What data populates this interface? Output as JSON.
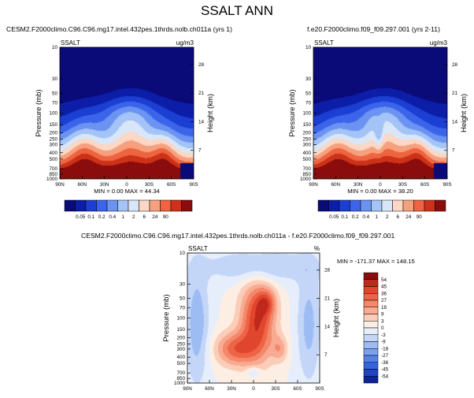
{
  "title": "SSALT ANN",
  "chart_data": [
    {
      "type": "heatmap",
      "title": "CESM2.F2000climo.C96.C96.mg17.intel.432pes.1thrds.nolb.ch011a (yrs 1)",
      "variable": "SSALT",
      "units": "ug/m3",
      "ylabel": "Pressure (mb)",
      "y2label": "Height (km)",
      "x_ticks": [
        "90N",
        "60N",
        "30N",
        "0",
        "30S",
        "60S",
        "90S"
      ],
      "y_ticks": [
        "10",
        "30",
        "50",
        "70",
        "100",
        "150",
        "200",
        "250",
        "300",
        "400",
        "500",
        "700",
        "850",
        "1000"
      ],
      "y2_ticks": [
        "28",
        "21",
        "14",
        "7"
      ],
      "ylim": [
        1000,
        10
      ],
      "yscale": "log",
      "stats": "MIN =  0.00  MAX = 44.34",
      "color_levels": [
        "0.05",
        "0.1",
        "0.2",
        "0.4",
        "1",
        "2",
        "6",
        "24",
        "90"
      ],
      "colors": [
        "#0a0a78",
        "#0c1ea8",
        "#1a3fd2",
        "#3c64ea",
        "#6a93f2",
        "#a4c3f6",
        "#d8e6f8",
        "#fbd7c4",
        "#f6a07e",
        "#ee6440",
        "#cc3218",
        "#8a0c0c"
      ]
    },
    {
      "type": "heatmap",
      "title": "f.e20.F2000climo.f09_f09.297.001 (yrs 2-11)",
      "variable": "SSALT",
      "units": "ug/m3",
      "ylabel": "Pressure (mb)",
      "y2label": "Height (km)",
      "x_ticks": [
        "90N",
        "60N",
        "30N",
        "0",
        "30S",
        "60S",
        "90S"
      ],
      "y_ticks": [
        "10",
        "30",
        "50",
        "70",
        "100",
        "150",
        "200",
        "250",
        "300",
        "400",
        "500",
        "700",
        "850",
        "1000"
      ],
      "y2_ticks": [
        "28",
        "21",
        "14",
        "7"
      ],
      "ylim": [
        1000,
        10
      ],
      "yscale": "log",
      "stats": "MIN =  0.00  MAX = 38.20",
      "color_levels": [
        "0.05",
        "0.1",
        "0.2",
        "0.4",
        "1",
        "2",
        "6",
        "24",
        "90"
      ],
      "colors": [
        "#0a0a78",
        "#0c1ea8",
        "#1a3fd2",
        "#3c64ea",
        "#6a93f2",
        "#a4c3f6",
        "#d8e6f8",
        "#fbd7c4",
        "#f6a07e",
        "#ee6440",
        "#cc3218",
        "#8a0c0c"
      ]
    },
    {
      "type": "heatmap",
      "title": "CESM2.F2000climo.C96.C96.mg17.intel.432pes.1thrds.nolb.ch011a - f.e20.F2000climo.f09_f09.297.001",
      "variable": "SSALT",
      "units": "%",
      "ylabel": "Pressure (mb)",
      "y2label": "Height (km)",
      "x_ticks": [
        "90N",
        "60N",
        "30N",
        "0",
        "30S",
        "60S",
        "90S"
      ],
      "y_ticks": [
        "10",
        "30",
        "50",
        "70",
        "100",
        "150",
        "200",
        "250",
        "300",
        "400",
        "500",
        "700",
        "850",
        "1000"
      ],
      "y2_ticks": [
        "28",
        "21",
        "14",
        "7"
      ],
      "ylim": [
        1000,
        10
      ],
      "yscale": "log",
      "stats": "MIN = -171.37  MAX = 148.15",
      "color_levels": [
        "54",
        "45",
        "36",
        "27",
        "18",
        "9",
        "3",
        "0",
        "-3",
        "-9",
        "-18",
        "-27",
        "-36",
        "-45",
        "-54"
      ],
      "colors": [
        "#8a0c0c",
        "#c0281c",
        "#e0452e",
        "#ee6446",
        "#f4886a",
        "#f8ab92",
        "#fbcdb8",
        "#fdeee4",
        "#e6eefc",
        "#c4d6f8",
        "#9ebcf4",
        "#7aa0ee",
        "#5582e6",
        "#3464dc",
        "#1c44c4",
        "#0c2496"
      ]
    }
  ]
}
